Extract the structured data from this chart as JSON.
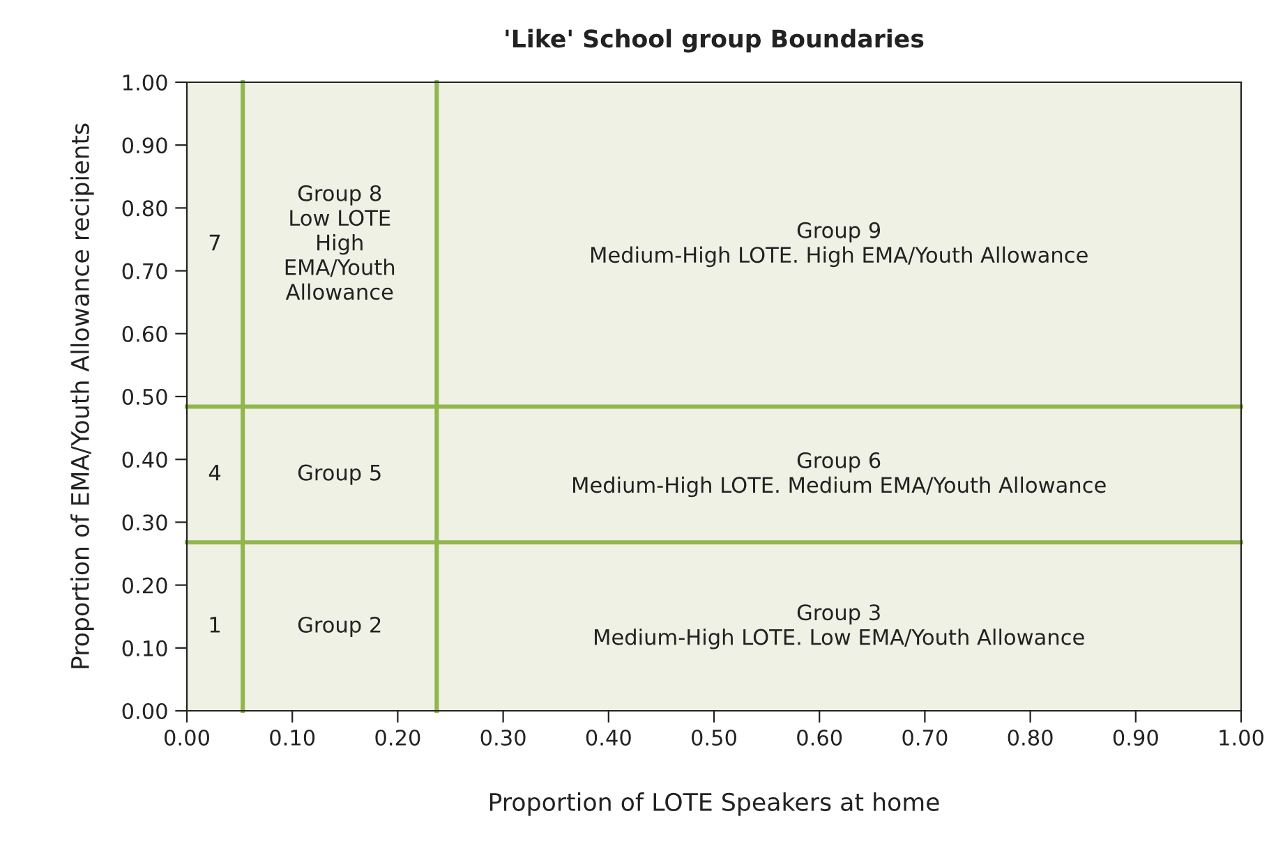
{
  "chart_data": {
    "type": "line",
    "title": "'Like' School group Boundaries",
    "xlabel": "Proportion of LOTE Speakers at home",
    "ylabel": "Proportion of EMA/Youth Allowance recipients",
    "xlim": [
      0,
      1
    ],
    "ylim": [
      0,
      1
    ],
    "xticks": [
      {
        "value": 0,
        "label": "0.00"
      },
      {
        "value": 0.1,
        "label": "0.10"
      },
      {
        "value": 0.2,
        "label": "0.20"
      },
      {
        "value": 0.3,
        "label": "0.30"
      },
      {
        "value": 0.4,
        "label": "0.40"
      },
      {
        "value": 0.5,
        "label": "0.50"
      },
      {
        "value": 0.6,
        "label": "0.60"
      },
      {
        "value": 0.7,
        "label": "0.70"
      },
      {
        "value": 0.8,
        "label": "0.80"
      },
      {
        "value": 0.9,
        "label": "0.90"
      },
      {
        "value": 1,
        "label": "1.00"
      }
    ],
    "yticks": [
      {
        "value": 0,
        "label": "0.00"
      },
      {
        "value": 0.1,
        "label": "0.10"
      },
      {
        "value": 0.2,
        "label": "0.20"
      },
      {
        "value": 0.3,
        "label": "0.30"
      },
      {
        "value": 0.4,
        "label": "0.40"
      },
      {
        "value": 0.5,
        "label": "0.50"
      },
      {
        "value": 0.6,
        "label": "0.60"
      },
      {
        "value": 0.7,
        "label": "0.70"
      },
      {
        "value": 0.8,
        "label": "0.80"
      },
      {
        "value": 0.9,
        "label": "0.90"
      },
      {
        "value": 1,
        "label": "1.00"
      }
    ],
    "marker": "none",
    "series": [
      {
        "color": "#92b64e",
        "x": [
          0.053,
          0.053
        ],
        "values": [
          0,
          1
        ]
      },
      {
        "color": "#92b64e",
        "x": [
          0.237,
          0.237
        ],
        "values": [
          0,
          1
        ]
      },
      {
        "color": "#92b64e",
        "x": [
          0,
          1
        ],
        "values": [
          0.484,
          0.484
        ]
      },
      {
        "color": "#92b64e",
        "x": [
          0,
          1
        ],
        "values": [
          0.268,
          0.268
        ]
      }
    ],
    "annotations": [
      "7",
      "Group 8\nLow LOTE\nHigh\nEMA/Youth\nAllowance",
      "Group 9\nMedium-High LOTE. High EMA/Youth Allowance",
      "4",
      "Group 5",
      "Group 6\nMedium-High LOTE. Medium EMA/Youth Allowance",
      "1",
      "Group 2",
      "Group 3\nMedium-High LOTE. Low EMA/Youth Allowance"
    ]
  }
}
